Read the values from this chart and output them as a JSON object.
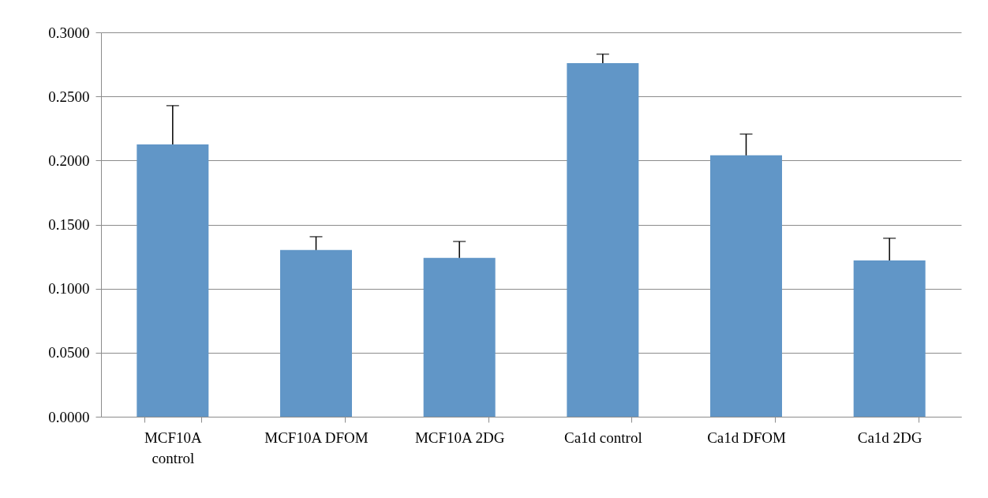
{
  "chart_data": {
    "type": "bar",
    "categories": [
      "MCF10A control",
      "MCF10A DFOM",
      "MCF10A 2DG",
      "Ca1d control",
      "Ca1d DFOM",
      "Ca1d 2DG"
    ],
    "values": [
      0.2125,
      0.1301,
      0.124,
      0.276,
      0.204,
      0.122
    ],
    "errors": [
      [
        0.2125,
        0.2428
      ],
      [
        0.1301,
        0.1405
      ],
      [
        0.124,
        0.1368
      ],
      [
        0.276,
        0.283
      ],
      [
        0.204,
        0.2206
      ],
      [
        0.122,
        0.1393
      ]
    ],
    "color": "#6196c7",
    "ylim": [
      0,
      0.3
    ],
    "yticks": [
      {
        "value": 0,
        "label": "0.0000"
      },
      {
        "value": 0.05,
        "label": "0.0500"
      },
      {
        "value": 0.1,
        "label": "0.1000"
      },
      {
        "value": 0.15,
        "label": "0.1500"
      },
      {
        "value": 0.2,
        "label": "0.2000"
      },
      {
        "value": 0.25,
        "label": "0.2500"
      },
      {
        "value": 0.3,
        "label": "0.3000"
      }
    ],
    "grid": "y"
  }
}
